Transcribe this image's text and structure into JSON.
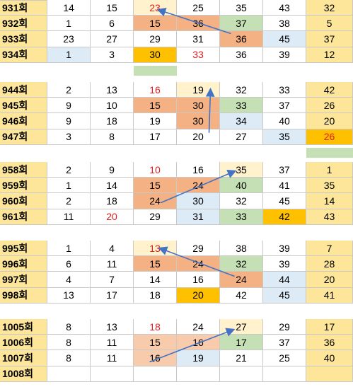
{
  "colors": {
    "label": "#fde699",
    "yellow": "#fde699",
    "light_yellow": "#fff2cc",
    "orange": "#f4b183",
    "light_orange": "#f8cbad",
    "green": "#c5e0b4",
    "blue": "#ddebf7",
    "gold": "#ffc000",
    "white": "#ffffff",
    "red_text": "#e02020",
    "arrow": "#4472c4"
  },
  "groups": [
    {
      "rows": [
        {
          "label": "931회",
          "cells": [
            {
              "v": "14"
            },
            {
              "v": "15"
            },
            {
              "v": "23",
              "bg": "light_yellow",
              "red": true
            },
            {
              "v": "25"
            },
            {
              "v": "35"
            },
            {
              "v": "43"
            },
            {
              "v": "32",
              "bg": "yellow"
            }
          ]
        },
        {
          "label": "932회",
          "cells": [
            {
              "v": "1"
            },
            {
              "v": "6"
            },
            {
              "v": "15",
              "bg": "orange"
            },
            {
              "v": "36",
              "bg": "orange"
            },
            {
              "v": "37",
              "bg": "green"
            },
            {
              "v": "38"
            },
            {
              "v": "5",
              "bg": "yellow"
            }
          ]
        },
        {
          "label": "933회",
          "cells": [
            {
              "v": "23"
            },
            {
              "v": "27"
            },
            {
              "v": "29"
            },
            {
              "v": "31"
            },
            {
              "v": "36",
              "bg": "orange"
            },
            {
              "v": "45",
              "bg": "blue"
            },
            {
              "v": "37",
              "bg": "yellow"
            }
          ]
        },
        {
          "label": "934회",
          "cells": [
            {
              "v": "1",
              "bg": "blue"
            },
            {
              "v": "3"
            },
            {
              "v": "30",
              "bg": "gold"
            },
            {
              "v": "33",
              "red": true
            },
            {
              "v": "36"
            },
            {
              "v": "39"
            },
            {
              "v": "12",
              "bg": "yellow"
            }
          ]
        }
      ],
      "marker_col": 3
    },
    {
      "rows": [
        {
          "label": "944회",
          "cells": [
            {
              "v": "2"
            },
            {
              "v": "13"
            },
            {
              "v": "16",
              "red": true
            },
            {
              "v": "19",
              "bg": "light_yellow"
            },
            {
              "v": "32"
            },
            {
              "v": "33"
            },
            {
              "v": "42",
              "bg": "yellow"
            }
          ]
        },
        {
          "label": "945회",
          "cells": [
            {
              "v": "9"
            },
            {
              "v": "10"
            },
            {
              "v": "15",
              "bg": "orange"
            },
            {
              "v": "30",
              "bg": "orange"
            },
            {
              "v": "33",
              "bg": "green"
            },
            {
              "v": "37"
            },
            {
              "v": "26",
              "bg": "yellow"
            }
          ]
        },
        {
          "label": "946회",
          "cells": [
            {
              "v": "9"
            },
            {
              "v": "18"
            },
            {
              "v": "19"
            },
            {
              "v": "30",
              "bg": "orange"
            },
            {
              "v": "34",
              "bg": "blue"
            },
            {
              "v": "40"
            },
            {
              "v": "20",
              "bg": "yellow"
            }
          ]
        },
        {
          "label": "947회",
          "cells": [
            {
              "v": "3"
            },
            {
              "v": "8"
            },
            {
              "v": "17"
            },
            {
              "v": "20"
            },
            {
              "v": "27"
            },
            {
              "v": "35",
              "bg": "blue"
            },
            {
              "v": "26",
              "bg": "gold",
              "red": true
            }
          ]
        }
      ],
      "marker_col": 7
    },
    {
      "rows": [
        {
          "label": "958회",
          "cells": [
            {
              "v": "2"
            },
            {
              "v": "9"
            },
            {
              "v": "10",
              "red": true
            },
            {
              "v": "16"
            },
            {
              "v": "35",
              "bg": "light_yellow"
            },
            {
              "v": "37"
            },
            {
              "v": "1",
              "bg": "yellow"
            }
          ]
        },
        {
          "label": "959회",
          "cells": [
            {
              "v": "1"
            },
            {
              "v": "14"
            },
            {
              "v": "15",
              "bg": "orange"
            },
            {
              "v": "24",
              "bg": "orange"
            },
            {
              "v": "40",
              "bg": "green"
            },
            {
              "v": "41"
            },
            {
              "v": "35",
              "bg": "yellow"
            }
          ]
        },
        {
          "label": "960회",
          "cells": [
            {
              "v": "2"
            },
            {
              "v": "18"
            },
            {
              "v": "24",
              "bg": "orange"
            },
            {
              "v": "30",
              "bg": "blue"
            },
            {
              "v": "32"
            },
            {
              "v": "45"
            },
            {
              "v": "14",
              "bg": "yellow"
            }
          ]
        },
        {
          "label": "961회",
          "cells": [
            {
              "v": "11"
            },
            {
              "v": "20",
              "red": true
            },
            {
              "v": "29"
            },
            {
              "v": "31",
              "bg": "blue"
            },
            {
              "v": "33",
              "bg": "green"
            },
            {
              "v": "42",
              "bg": "gold"
            },
            {
              "v": "43",
              "bg": "yellow"
            }
          ]
        }
      ],
      "marker_col": null
    },
    {
      "rows": [
        {
          "label": "995회",
          "cells": [
            {
              "v": "1"
            },
            {
              "v": "4"
            },
            {
              "v": "13",
              "bg": "light_yellow",
              "red": true
            },
            {
              "v": "29"
            },
            {
              "v": "38"
            },
            {
              "v": "39"
            },
            {
              "v": "7",
              "bg": "yellow"
            }
          ]
        },
        {
          "label": "996회",
          "cells": [
            {
              "v": "6"
            },
            {
              "v": "11"
            },
            {
              "v": "15",
              "bg": "orange"
            },
            {
              "v": "24",
              "bg": "orange"
            },
            {
              "v": "32",
              "bg": "green"
            },
            {
              "v": "39"
            },
            {
              "v": "28",
              "bg": "yellow"
            }
          ]
        },
        {
          "label": "997회",
          "cells": [
            {
              "v": "4"
            },
            {
              "v": "7"
            },
            {
              "v": "14"
            },
            {
              "v": "16"
            },
            {
              "v": "24",
              "bg": "orange"
            },
            {
              "v": "44",
              "bg": "blue"
            },
            {
              "v": "20",
              "bg": "yellow"
            }
          ]
        },
        {
          "label": "998회",
          "cells": [
            {
              "v": "13"
            },
            {
              "v": "17"
            },
            {
              "v": "18"
            },
            {
              "v": "20",
              "bg": "gold"
            },
            {
              "v": "42"
            },
            {
              "v": "45",
              "bg": "blue"
            },
            {
              "v": "41",
              "bg": "yellow"
            }
          ]
        }
      ],
      "marker_col": null
    },
    {
      "rows": [
        {
          "label": "1005회",
          "cells": [
            {
              "v": "8"
            },
            {
              "v": "13"
            },
            {
              "v": "18",
              "red": true
            },
            {
              "v": "24"
            },
            {
              "v": "27",
              "bg": "light_yellow"
            },
            {
              "v": "29"
            },
            {
              "v": "17",
              "bg": "yellow"
            }
          ]
        },
        {
          "label": "1006회",
          "cells": [
            {
              "v": "8"
            },
            {
              "v": "11"
            },
            {
              "v": "15",
              "bg": "light_orange"
            },
            {
              "v": "16",
              "bg": "light_orange"
            },
            {
              "v": "17",
              "bg": "green"
            },
            {
              "v": "37"
            },
            {
              "v": "36",
              "bg": "yellow"
            }
          ]
        },
        {
          "label": "1007회",
          "cells": [
            {
              "v": "8"
            },
            {
              "v": "11"
            },
            {
              "v": "16",
              "bg": "light_orange"
            },
            {
              "v": "19",
              "bg": "blue"
            },
            {
              "v": "21"
            },
            {
              "v": "25"
            },
            {
              "v": "40",
              "bg": "yellow"
            }
          ]
        },
        {
          "label": "1008회",
          "cells": [
            {
              "v": ""
            },
            {
              "v": ""
            },
            {
              "v": ""
            },
            {
              "v": ""
            },
            {
              "v": ""
            },
            {
              "v": ""
            },
            {
              "v": "",
              "bg": "yellow"
            }
          ]
        }
      ],
      "marker_col": null
    }
  ]
}
